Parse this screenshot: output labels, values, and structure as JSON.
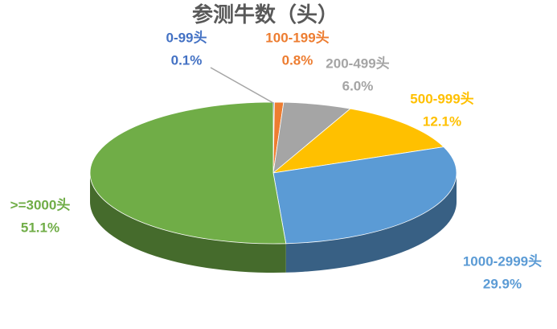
{
  "chart_data": {
    "type": "pie",
    "title": "参测牛数（头）",
    "categories": [
      "0-99头",
      "100-199头",
      "200-499头",
      "500-999头",
      "1000-2999头",
      ">=3000头"
    ],
    "values": [
      0.1,
      0.8,
      6.0,
      12.1,
      29.9,
      51.1
    ],
    "value_labels": [
      "0.1%",
      "0.8%",
      "6.0%",
      "12.1%",
      "29.9%",
      "51.1%"
    ],
    "colors": [
      "#4472c4",
      "#ed7d31",
      "#a5a5a5",
      "#ffc000",
      "#5b9bd5",
      "#70ad47"
    ]
  }
}
